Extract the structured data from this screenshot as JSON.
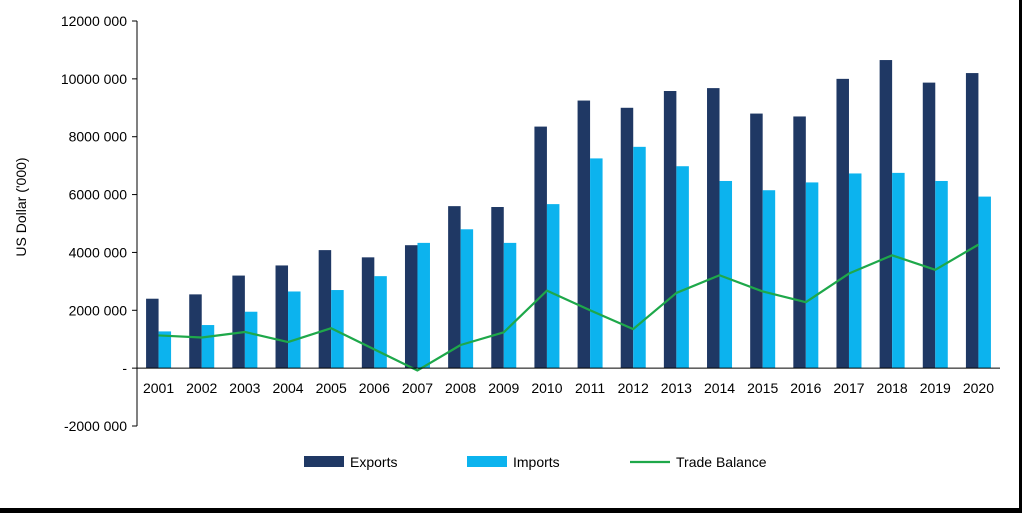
{
  "chart_data": {
    "type": "bar",
    "title": "",
    "xlabel": "",
    "ylabel": "US Dollar ('000)",
    "ylim": [
      -2000000,
      12000000
    ],
    "yticks": [
      -2000000,
      0,
      2000000,
      4000000,
      6000000,
      8000000,
      10000000,
      12000000
    ],
    "ytick_labels": [
      "-2000 000",
      "-",
      "2000 000",
      "4000 000",
      "6000 000",
      "8000 000",
      "10000 000",
      "12000 000"
    ],
    "grid": false,
    "legend_position": "bottom",
    "categories": [
      "2001",
      "2002",
      "2003",
      "2004",
      "2005",
      "2006",
      "2007",
      "2008",
      "2009",
      "2010",
      "2011",
      "2012",
      "2013",
      "2014",
      "2015",
      "2016",
      "2017",
      "2018",
      "2019",
      "2020"
    ],
    "series": [
      {
        "name": "Exports",
        "type": "bar",
        "color": "#1f3864",
        "values": [
          2400000,
          2550000,
          3200000,
          3550000,
          4080000,
          3830000,
          4250000,
          5600000,
          5570000,
          8350000,
          9250000,
          9000000,
          9580000,
          9680000,
          8800000,
          8700000,
          10000000,
          10650000,
          9870000,
          10200000
        ]
      },
      {
        "name": "Imports",
        "type": "bar",
        "color": "#0cb3ee",
        "values": [
          1270000,
          1490000,
          1950000,
          2650000,
          2700000,
          3180000,
          4330000,
          4800000,
          4330000,
          5670000,
          7250000,
          7650000,
          6980000,
          6470000,
          6150000,
          6420000,
          6730000,
          6750000,
          6470000,
          5930000
        ]
      },
      {
        "name": "Trade Balance",
        "type": "line",
        "color": "#1ea84a",
        "values": [
          1130000,
          1060000,
          1250000,
          900000,
          1380000,
          650000,
          -80000,
          800000,
          1240000,
          2680000,
          2000000,
          1350000,
          2600000,
          3210000,
          2650000,
          2280000,
          3270000,
          3900000,
          3400000,
          4270000
        ]
      }
    ]
  }
}
